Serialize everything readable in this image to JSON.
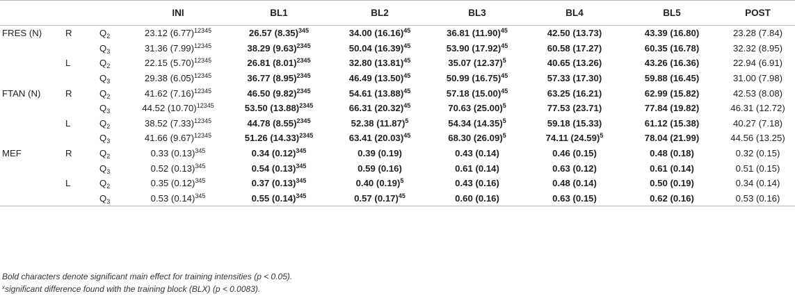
{
  "header": [
    "",
    "",
    "",
    "INI",
    "BL1",
    "BL2",
    "BL3",
    "BL4",
    "BL5",
    "POST"
  ],
  "rows": [
    {
      "var": "FRES (N)",
      "side": "R",
      "q": "Q",
      "qsub": "2",
      "cells": [
        {
          "v": "23.12 (6.77)",
          "s": "12345",
          "b": false
        },
        {
          "v": "26.57 (8.35)",
          "s": "345",
          "b": true
        },
        {
          "v": "34.00 (16.16)",
          "s": "45",
          "b": true
        },
        {
          "v": "36.81 (11.90)",
          "s": "45",
          "b": true
        },
        {
          "v": "42.50 (13.73)",
          "s": "",
          "b": true
        },
        {
          "v": "43.39 (16.80)",
          "s": "",
          "b": true
        },
        {
          "v": "23.28 (7.84)",
          "s": "",
          "b": false
        }
      ]
    },
    {
      "var": "",
      "side": "",
      "q": "Q",
      "qsub": "3",
      "cells": [
        {
          "v": "31.36 (7.99)",
          "s": "12345",
          "b": false
        },
        {
          "v": "38.29 (9.63)",
          "s": "2345",
          "b": true
        },
        {
          "v": "50.04 (16.39)",
          "s": "45",
          "b": true
        },
        {
          "v": "53.90 (17.92)",
          "s": "45",
          "b": true
        },
        {
          "v": "60.58 (17.27)",
          "s": "",
          "b": true
        },
        {
          "v": "60.35 (16.78)",
          "s": "",
          "b": true
        },
        {
          "v": "32.32 (8.95)",
          "s": "",
          "b": false
        }
      ]
    },
    {
      "var": "",
      "side": "L",
      "q": "Q",
      "qsub": "2",
      "cells": [
        {
          "v": "22.15 (5.70)",
          "s": "12345",
          "b": false
        },
        {
          "v": "26.81 (8.01)",
          "s": "2345",
          "b": true
        },
        {
          "v": "32.80 (13.81)",
          "s": "45",
          "b": true
        },
        {
          "v": "35.07 (12.37)",
          "s": "5",
          "b": true
        },
        {
          "v": "40.65 (13.26)",
          "s": "",
          "b": true
        },
        {
          "v": "43.26 (16.36)",
          "s": "",
          "b": true
        },
        {
          "v": "22.94 (6.91)",
          "s": "",
          "b": false
        }
      ]
    },
    {
      "var": "",
      "side": "",
      "q": "Q",
      "qsub": "3",
      "cells": [
        {
          "v": "29.38 (6.05)",
          "s": "12345",
          "b": false
        },
        {
          "v": "36.77 (8.95)",
          "s": "2345",
          "b": true
        },
        {
          "v": "46.49 (13.50)",
          "s": "45",
          "b": true
        },
        {
          "v": "50.99 (16.75)",
          "s": "45",
          "b": true
        },
        {
          "v": "57.33 (17.30)",
          "s": "",
          "b": true
        },
        {
          "v": "59.88 (16.45)",
          "s": "",
          "b": true
        },
        {
          "v": "31.00 (7.98)",
          "s": "",
          "b": false
        }
      ]
    },
    {
      "var": "FTAN (N)",
      "side": "R",
      "q": "Q",
      "qsub": "2",
      "cells": [
        {
          "v": "41.62 (7.16)",
          "s": "12345",
          "b": false
        },
        {
          "v": "46.50 (9.82)",
          "s": "2345",
          "b": true
        },
        {
          "v": "54.61 (13.88)",
          "s": "45",
          "b": true
        },
        {
          "v": "57.18 (15.00)",
          "s": "45",
          "b": true
        },
        {
          "v": "63.25 (16.21)",
          "s": "",
          "b": true
        },
        {
          "v": "62.99 (15.82)",
          "s": "",
          "b": true
        },
        {
          "v": "42.53 (8.08)",
          "s": "",
          "b": false
        }
      ]
    },
    {
      "var": "",
      "side": "",
      "q": "Q",
      "qsub": "3",
      "cells": [
        {
          "v": "44.52 (10.70)",
          "s": "12345",
          "b": false
        },
        {
          "v": "53.50 (13.88)",
          "s": "2345",
          "b": true
        },
        {
          "v": "66.31 (20.32)",
          "s": "45",
          "b": true
        },
        {
          "v": "70.63 (25.00)",
          "s": "5",
          "b": true
        },
        {
          "v": "77.53 (23.71)",
          "s": "",
          "b": true
        },
        {
          "v": "77.84 (19.82)",
          "s": "",
          "b": true
        },
        {
          "v": "46.31 (12.72)",
          "s": "",
          "b": false
        }
      ]
    },
    {
      "var": "",
      "side": "L",
      "q": "Q",
      "qsub": "2",
      "cells": [
        {
          "v": "38.52 (7.33)",
          "s": "12345",
          "b": false
        },
        {
          "v": "44.78 (8.55)",
          "s": "2345",
          "b": true
        },
        {
          "v": "52.38 (11.87)",
          "s": "5",
          "b": true
        },
        {
          "v": "54.34 (14.35)",
          "s": "5",
          "b": true
        },
        {
          "v": "59.18 (15.33)",
          "s": "",
          "b": true
        },
        {
          "v": "61.12 (15.38)",
          "s": "",
          "b": true
        },
        {
          "v": "40.27 (7.18)",
          "s": "",
          "b": false
        }
      ]
    },
    {
      "var": "",
      "side": "",
      "q": "Q",
      "qsub": "3",
      "cells": [
        {
          "v": "41.66 (9.67)",
          "s": "12345",
          "b": false
        },
        {
          "v": "51.26 (14.33)",
          "s": "2345",
          "b": true
        },
        {
          "v": "63.41 (20.03)",
          "s": "45",
          "b": true
        },
        {
          "v": "68.30 (26.09)",
          "s": "5",
          "b": true
        },
        {
          "v": "74.11 (24.59)",
          "s": "5",
          "b": true
        },
        {
          "v": "78.04 (21.99)",
          "s": "",
          "b": true
        },
        {
          "v": "44.56 (13.25)",
          "s": "",
          "b": false
        }
      ]
    },
    {
      "var": "MEF",
      "side": "R",
      "q": "Q",
      "qsub": "2",
      "cells": [
        {
          "v": "0.33 (0.13)",
          "s": "345",
          "b": false
        },
        {
          "v": "0.34 (0.12)",
          "s": "345",
          "b": true
        },
        {
          "v": "0.39 (0.19)",
          "s": "",
          "b": true
        },
        {
          "v": "0.43 (0.14)",
          "s": "",
          "b": true
        },
        {
          "v": "0.46 (0.15)",
          "s": "",
          "b": true
        },
        {
          "v": "0.48 (0.18)",
          "s": "",
          "b": true
        },
        {
          "v": "0.32 (0.15)",
          "s": "",
          "b": false
        }
      ]
    },
    {
      "var": "",
      "side": "",
      "q": "Q",
      "qsub": "3",
      "cells": [
        {
          "v": "0.52 (0.13)",
          "s": "345",
          "b": false
        },
        {
          "v": "0.54 (0.13)",
          "s": "345",
          "b": true
        },
        {
          "v": "0.59 (0.16)",
          "s": "",
          "b": true
        },
        {
          "v": "0.61 (0.14)",
          "s": "",
          "b": true
        },
        {
          "v": "0.63 (0.12)",
          "s": "",
          "b": true
        },
        {
          "v": "0.61 (0.14)",
          "s": "",
          "b": true
        },
        {
          "v": "0.51 (0.15)",
          "s": "",
          "b": false
        }
      ]
    },
    {
      "var": "",
      "side": "L",
      "q": "Q",
      "qsub": "2",
      "cells": [
        {
          "v": "0.35 (0.12)",
          "s": "345",
          "b": false
        },
        {
          "v": "0.37 (0.13)",
          "s": "345",
          "b": true
        },
        {
          "v": "0.40 (0.19)",
          "s": "5",
          "b": true
        },
        {
          "v": "0.43 (0.16)",
          "s": "",
          "b": true
        },
        {
          "v": "0.48 (0.14)",
          "s": "",
          "b": true
        },
        {
          "v": "0.50 (0.19)",
          "s": "",
          "b": true
        },
        {
          "v": "0.34 (0.14)",
          "s": "",
          "b": false
        }
      ]
    },
    {
      "var": "",
      "side": "",
      "q": "Q",
      "qsub": "3",
      "cells": [
        {
          "v": "0.53 (0.14)",
          "s": "345",
          "b": false
        },
        {
          "v": "0.55 (0.14)",
          "s": "345",
          "b": true
        },
        {
          "v": "0.57 (0.17)",
          "s": "45",
          "b": true
        },
        {
          "v": "0.60 (0.16)",
          "s": "",
          "b": true
        },
        {
          "v": "0.63 (0.15)",
          "s": "",
          "b": true
        },
        {
          "v": "0.62 (0.16)",
          "s": "",
          "b": true
        },
        {
          "v": "0.53 (0.16)",
          "s": "",
          "b": false
        }
      ]
    }
  ],
  "notes": {
    "line1": "Bold characters denote significant main effect for training intensities (p < 0.05).",
    "line2_sup": "x",
    "line2": "significant difference found with the training block (BLX) (p < 0.0083)."
  }
}
